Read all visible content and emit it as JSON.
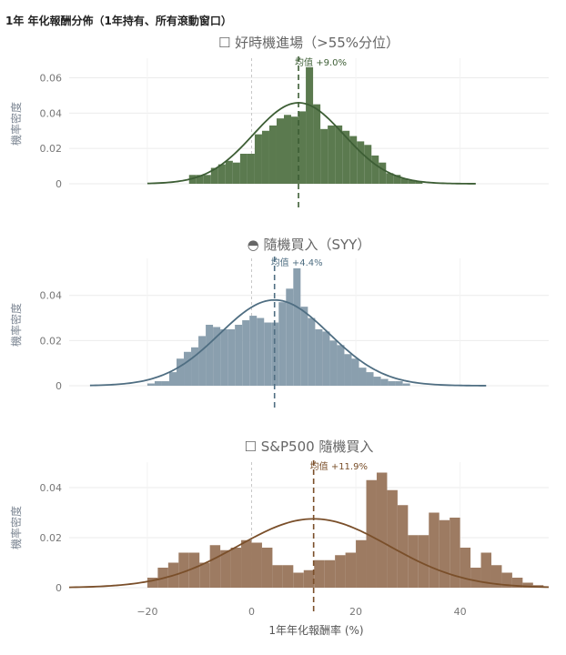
{
  "page": {
    "title": "1年 年化報酬分佈（1年持有、所有滾動窗口）"
  },
  "colors": {
    "grid": "#ebebeb",
    "zero_line": "#c8c8c8",
    "tick": "#777777",
    "axis_title": "#555555"
  },
  "chart_data": [
    {
      "type": "bar",
      "title": "☐ 好時機進場（>55%分位）",
      "ylabel": "機率密度",
      "xlabel": "",
      "ylim": [
        0,
        0.068
      ],
      "yticks": [
        0,
        0.02,
        0.04,
        0.06
      ],
      "ytick_labels": [
        "0",
        "0.02",
        "0.04",
        "0.06"
      ],
      "xlim": [
        -35,
        57
      ],
      "mean": 9.0,
      "mean_label": "均值 +9.0%",
      "bar_color": "#5b7a4f",
      "line_color": "#3d5e35",
      "bin_width": 1.4,
      "bins_start": -12,
      "values": [
        0.005,
        0.005,
        0.005,
        0.009,
        0.011,
        0.013,
        0.012,
        0.017,
        0.017,
        0.028,
        0.03,
        0.033,
        0.037,
        0.039,
        0.038,
        0.041,
        0.066,
        0.045,
        0.031,
        0.033,
        0.033,
        0.03,
        0.027,
        0.024,
        0.022,
        0.016,
        0.012,
        0.006,
        0.005,
        0.003,
        0.002,
        0.0015
      ],
      "kde": {
        "mean": 9.0,
        "sd": 8.7,
        "range": [
          -20,
          43
        ]
      }
    },
    {
      "type": "bar",
      "title": "◓ 隨機買入（SYY）",
      "ylabel": "機率密度",
      "xlabel": "",
      "ylim": [
        0,
        0.054
      ],
      "yticks": [
        0,
        0.02,
        0.04
      ],
      "ytick_labels": [
        "0",
        "0.02",
        "0.04"
      ],
      "xlim": [
        -35,
        57
      ],
      "mean": 4.4,
      "mean_label": "均值 +4.4%",
      "bar_color": "#8a9fae",
      "line_color": "#4f6e82",
      "bin_width": 1.4,
      "bins_start": -20,
      "values": [
        0.001,
        0.002,
        0.002,
        0.006,
        0.012,
        0.015,
        0.017,
        0.022,
        0.027,
        0.026,
        0.025,
        0.025,
        0.027,
        0.029,
        0.031,
        0.03,
        0.028,
        0.028,
        0.037,
        0.043,
        0.052,
        0.035,
        0.03,
        0.025,
        0.024,
        0.02,
        0.018,
        0.014,
        0.012,
        0.008,
        0.006,
        0.004,
        0.003,
        0.002,
        0.002,
        0.001
      ],
      "kde": {
        "mean": 4.4,
        "sd": 10.5,
        "range": [
          -31,
          45
        ]
      }
    },
    {
      "type": "bar",
      "title": "☐ S&P500 隨機買入",
      "ylabel": "機率密度",
      "xlabel": "1年年化報酬率 (%)",
      "ylim": [
        0,
        0.048
      ],
      "yticks": [
        0,
        0.02,
        0.04
      ],
      "ytick_labels": [
        "0",
        "0.02",
        "0.04"
      ],
      "xtick_values": [
        -20,
        0,
        20,
        40
      ],
      "xtick_labels": [
        "−20",
        "0",
        "20",
        "40"
      ],
      "xlim": [
        -35,
        57
      ],
      "mean": 11.9,
      "mean_label": "均值 +11.9%",
      "bar_color": "#9d7b62",
      "line_color": "#7a4f2a",
      "bin_width": 2.0,
      "bins_start": -20,
      "values": [
        0.004,
        0.008,
        0.01,
        0.014,
        0.014,
        0.01,
        0.017,
        0.015,
        0.016,
        0.019,
        0.018,
        0.016,
        0.009,
        0.009,
        0.006,
        0.007,
        0.011,
        0.011,
        0.013,
        0.014,
        0.019,
        0.043,
        0.046,
        0.039,
        0.033,
        0.021,
        0.021,
        0.03,
        0.027,
        0.028,
        0.016,
        0.008,
        0.014,
        0.009,
        0.006,
        0.004,
        0.002,
        0.001
      ],
      "kde": {
        "mean": 11.9,
        "sd": 14.5,
        "range": [
          -35,
          57
        ]
      }
    }
  ]
}
